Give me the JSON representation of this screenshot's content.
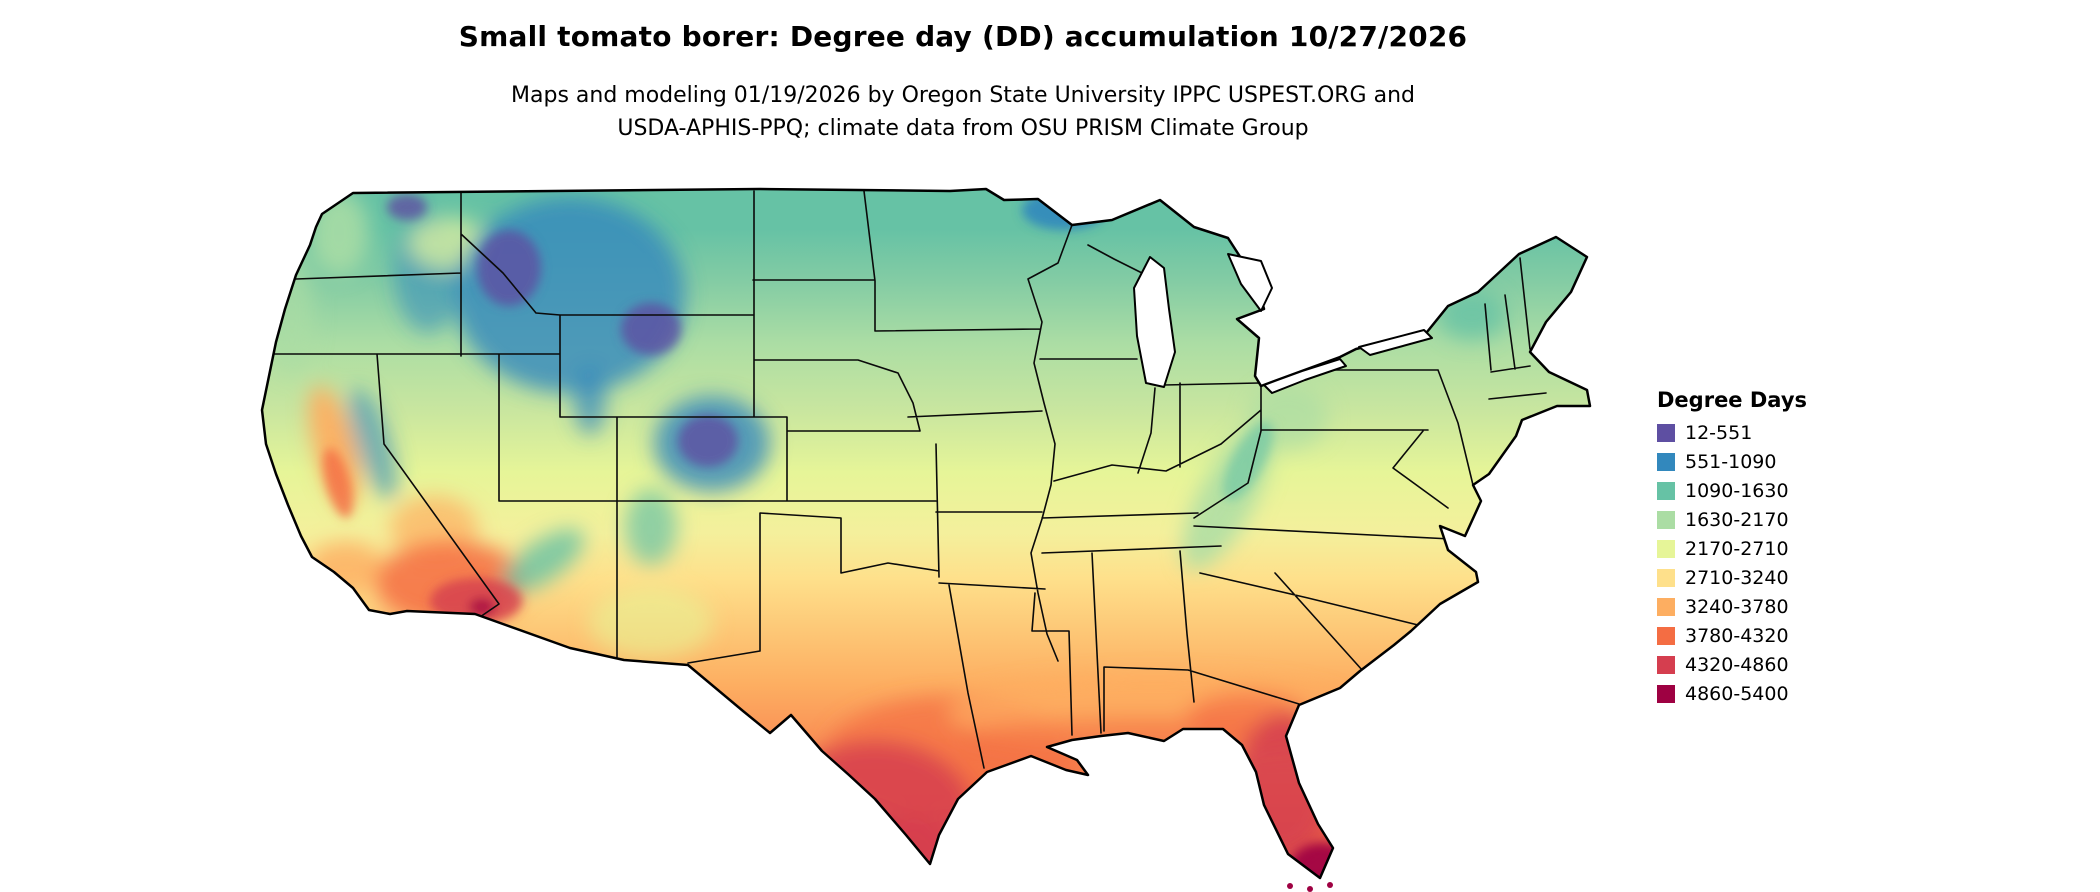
{
  "title": "Small tomato borer: Degree day (DD) accumulation 10/27/2026",
  "subtitle_line1": "Maps and modeling 01/19/2026 by Oregon State University IPPC USPEST.ORG and",
  "subtitle_line2": "USDA-APHIS-PPQ; climate data from OSU PRISM Climate Group",
  "legend": {
    "title": "Degree Days",
    "entries": [
      {
        "label": "12-551",
        "color": "#5e4fa2"
      },
      {
        "label": "551-1090",
        "color": "#3288bd"
      },
      {
        "label": "1090-1630",
        "color": "#66c2a5"
      },
      {
        "label": "1630-2170",
        "color": "#abdda4"
      },
      {
        "label": "2170-2710",
        "color": "#e6f598"
      },
      {
        "label": "2710-3240",
        "color": "#fee08b"
      },
      {
        "label": "3240-3780",
        "color": "#fdae61"
      },
      {
        "label": "3780-4320",
        "color": "#f46d43"
      },
      {
        "label": "4320-4860",
        "color": "#d53e4f"
      },
      {
        "label": "4860-5400",
        "color": "#9e0142"
      }
    ]
  },
  "map": {
    "region": "contiguous United States",
    "low_value_color_note": "cool colors (purple/blue) in northern and mountain regions",
    "high_value_color_note": "warm colors (orange/red) in southern Texas, Arizona deserts and Florida"
  }
}
